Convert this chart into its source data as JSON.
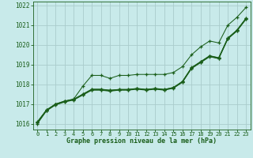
{
  "background_color": "#c8eaea",
  "grid_color": "#aacccc",
  "line_color": "#1a5e1a",
  "marker_color": "#1a5e1a",
  "xlabel": "Graphe pression niveau de la mer (hPa)",
  "xlabel_fontsize": 6.0,
  "xtick_fontsize": 5.0,
  "ytick_fontsize": 5.5,
  "xlim": [
    -0.5,
    23.5
  ],
  "ylim_min": 1015.7,
  "ylim_max": 1022.2,
  "yticks": [
    1016,
    1017,
    1018,
    1019,
    1020,
    1021,
    1022
  ],
  "xticks": [
    0,
    1,
    2,
    3,
    4,
    5,
    6,
    7,
    8,
    9,
    10,
    11,
    12,
    13,
    14,
    15,
    16,
    17,
    18,
    19,
    20,
    21,
    22,
    23
  ],
  "line1_x": [
    0,
    1,
    2,
    3,
    4,
    5,
    6,
    7,
    8,
    9,
    10,
    11,
    12,
    13,
    14,
    15,
    16,
    17,
    18,
    19,
    20,
    21,
    22,
    23
  ],
  "line1_y": [
    1016.1,
    1016.7,
    1017.0,
    1017.15,
    1017.25,
    1017.9,
    1018.45,
    1018.45,
    1018.3,
    1018.45,
    1018.45,
    1018.5,
    1018.5,
    1018.5,
    1018.5,
    1018.6,
    1018.9,
    1019.5,
    1019.9,
    1020.2,
    1020.1,
    1021.0,
    1021.4,
    1021.9
  ],
  "line2_x": [
    0,
    1,
    2,
    3,
    4,
    5,
    6,
    7,
    8,
    9,
    10,
    11,
    12,
    13,
    14,
    15,
    16,
    17,
    18,
    19,
    20,
    21,
    22,
    23
  ],
  "line2_y": [
    1016.0,
    1016.65,
    1016.95,
    1017.1,
    1017.2,
    1017.45,
    1017.7,
    1017.7,
    1017.65,
    1017.7,
    1017.7,
    1017.75,
    1017.7,
    1017.75,
    1017.7,
    1017.8,
    1018.1,
    1018.8,
    1019.1,
    1019.4,
    1019.3,
    1020.3,
    1020.7,
    1021.3
  ],
  "line3_x": [
    0,
    1,
    2,
    3,
    4,
    5,
    6,
    7,
    8,
    9,
    10,
    11,
    12,
    13,
    14,
    15,
    16,
    17,
    18,
    19,
    20,
    21,
    22,
    23
  ],
  "line3_y": [
    1016.05,
    1016.68,
    1016.98,
    1017.13,
    1017.23,
    1017.5,
    1017.75,
    1017.75,
    1017.7,
    1017.73,
    1017.73,
    1017.78,
    1017.73,
    1017.78,
    1017.73,
    1017.83,
    1018.15,
    1018.85,
    1019.15,
    1019.45,
    1019.35,
    1020.35,
    1020.75,
    1021.35
  ],
  "line4_x": [
    0,
    1,
    2,
    3,
    4,
    5,
    6,
    7,
    8,
    9,
    10,
    11,
    12,
    13,
    14,
    15,
    16,
    17,
    18,
    19,
    20,
    21,
    22,
    23
  ],
  "line4_y": [
    1016.05,
    1016.67,
    1016.97,
    1017.12,
    1017.22,
    1017.48,
    1017.72,
    1017.72,
    1017.67,
    1017.72,
    1017.72,
    1017.77,
    1017.72,
    1017.77,
    1017.72,
    1017.82,
    1018.12,
    1018.82,
    1019.12,
    1019.42,
    1019.32,
    1020.32,
    1020.72,
    1021.32
  ],
  "line5_x": [
    0,
    1,
    2,
    3,
    4,
    5,
    6,
    7,
    8,
    9,
    10,
    11,
    12,
    13,
    14,
    15,
    16,
    17,
    18,
    19,
    20,
    21,
    22,
    23
  ],
  "line5_y": [
    1016.08,
    1016.69,
    1016.99,
    1017.14,
    1017.24,
    1017.49,
    1017.74,
    1017.74,
    1017.69,
    1017.74,
    1017.74,
    1017.79,
    1017.74,
    1017.79,
    1017.74,
    1017.84,
    1018.14,
    1018.84,
    1019.14,
    1019.44,
    1019.34,
    1020.34,
    1020.74,
    1021.34
  ]
}
